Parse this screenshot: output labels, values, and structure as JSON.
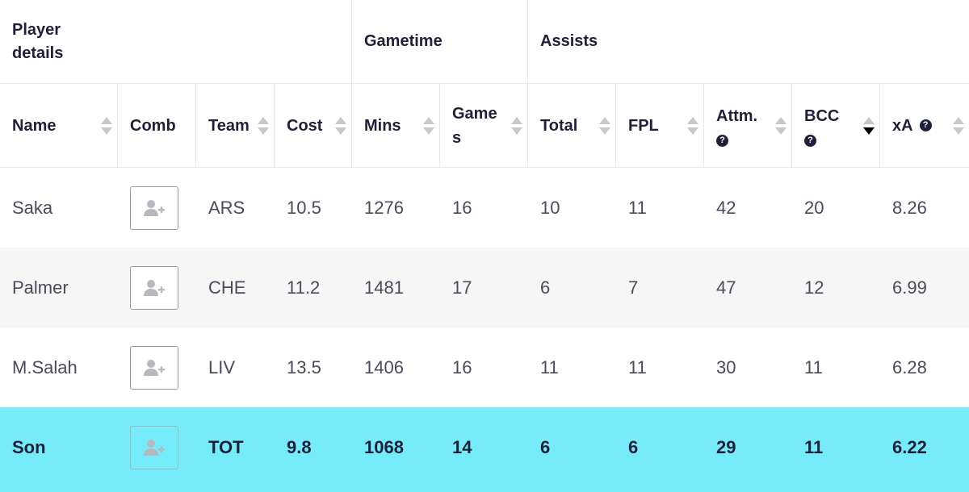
{
  "groups": {
    "player_details": "Player details",
    "gametime": "Gametime",
    "assists": "Assists"
  },
  "columns": {
    "name": "Name",
    "comb": "Comb",
    "team": "Team",
    "cost": "Cost",
    "mins": "Mins",
    "games_line1": "Game",
    "games_line2": "s",
    "total": "Total",
    "fpl": "FPL",
    "attm": "Attm.",
    "bcc": "BCC",
    "xa": "xA"
  },
  "help_icon": "?",
  "sorted_column": "BCC",
  "sort_direction": "descending",
  "rows": [
    {
      "name": "Saka",
      "team": "ARS",
      "cost": "10.5",
      "mins": "1276",
      "games": "16",
      "total": "10",
      "fpl": "11",
      "attm": "42",
      "bcc": "20",
      "xa": "8.26"
    },
    {
      "name": "Palmer",
      "team": "CHE",
      "cost": "11.2",
      "mins": "1481",
      "games": "17",
      "total": "6",
      "fpl": "7",
      "attm": "47",
      "bcc": "12",
      "xa": "6.99"
    },
    {
      "name": "M.Salah",
      "team": "LIV",
      "cost": "13.5",
      "mins": "1406",
      "games": "16",
      "total": "11",
      "fpl": "11",
      "attm": "30",
      "bcc": "11",
      "xa": "6.28"
    },
    {
      "name": "Son",
      "team": "TOT",
      "cost": "9.8",
      "mins": "1068",
      "games": "14",
      "total": "6",
      "fpl": "6",
      "attm": "29",
      "bcc": "11",
      "xa": "6.22"
    }
  ],
  "highlighted_row": "Son",
  "colors": {
    "highlight": "#76ecfa",
    "stripe": "#f6f6f6",
    "text": "#1f1f3a"
  },
  "icons": {
    "comb_button": "add-user-icon",
    "sort": "sort-arrows-icon",
    "help": "question-circle-icon"
  }
}
